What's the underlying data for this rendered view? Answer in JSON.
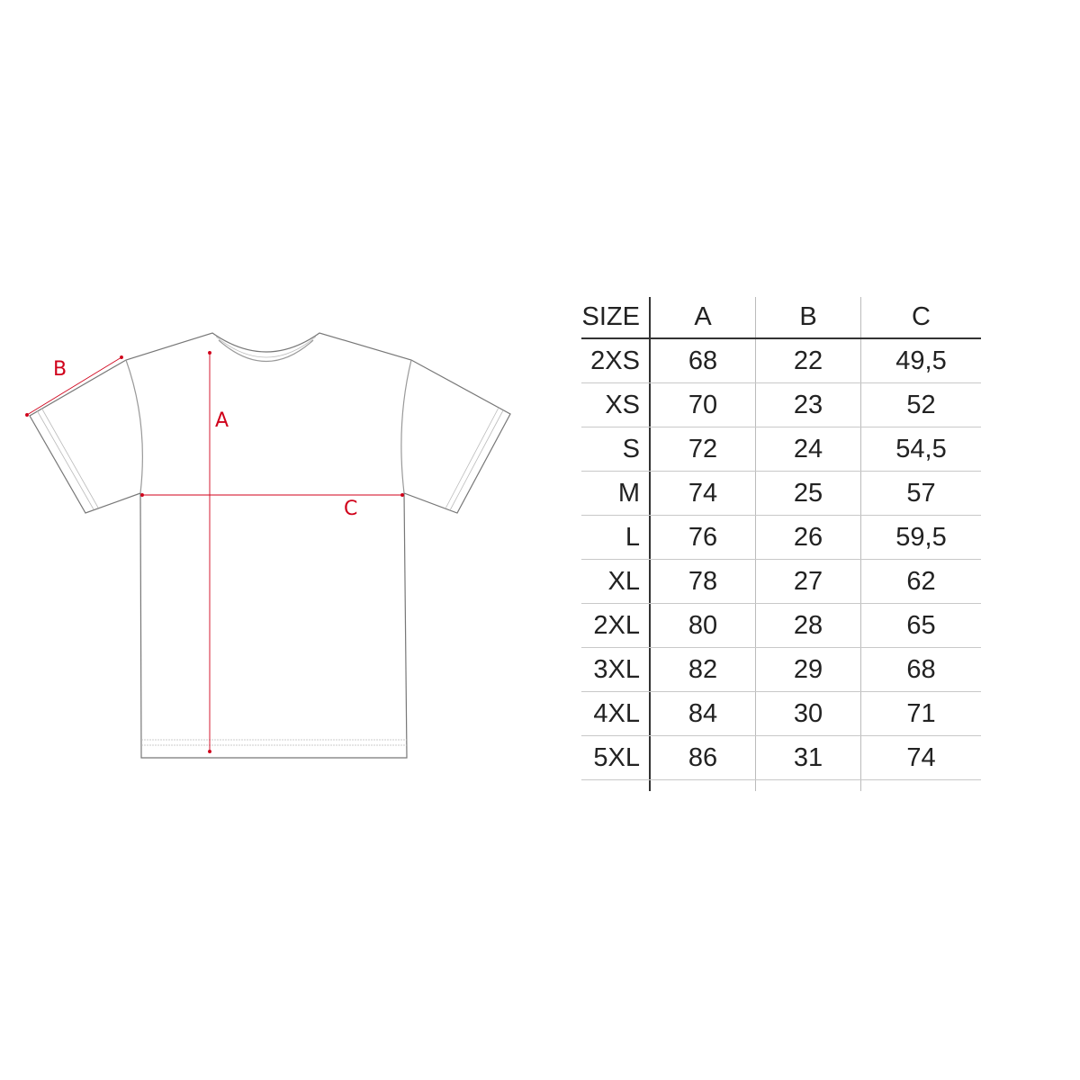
{
  "diagram": {
    "labels": {
      "a": "A",
      "b": "B",
      "c": "C"
    },
    "measure_color": "#d0021b"
  },
  "size_table": {
    "headers": [
      "SIZE",
      "A",
      "B",
      "C"
    ],
    "rows": [
      [
        "2XS",
        "68",
        "22",
        "49,5"
      ],
      [
        "XS",
        "70",
        "23",
        "52"
      ],
      [
        "S",
        "72",
        "24",
        "54,5"
      ],
      [
        "M",
        "74",
        "25",
        "57"
      ],
      [
        "L",
        "76",
        "26",
        "59,5"
      ],
      [
        "XL",
        "78",
        "27",
        "62"
      ],
      [
        "2XL",
        "80",
        "28",
        "65"
      ],
      [
        "3XL",
        "82",
        "29",
        "68"
      ],
      [
        "4XL",
        "84",
        "30",
        "71"
      ],
      [
        "5XL",
        "86",
        "31",
        "74"
      ]
    ]
  }
}
